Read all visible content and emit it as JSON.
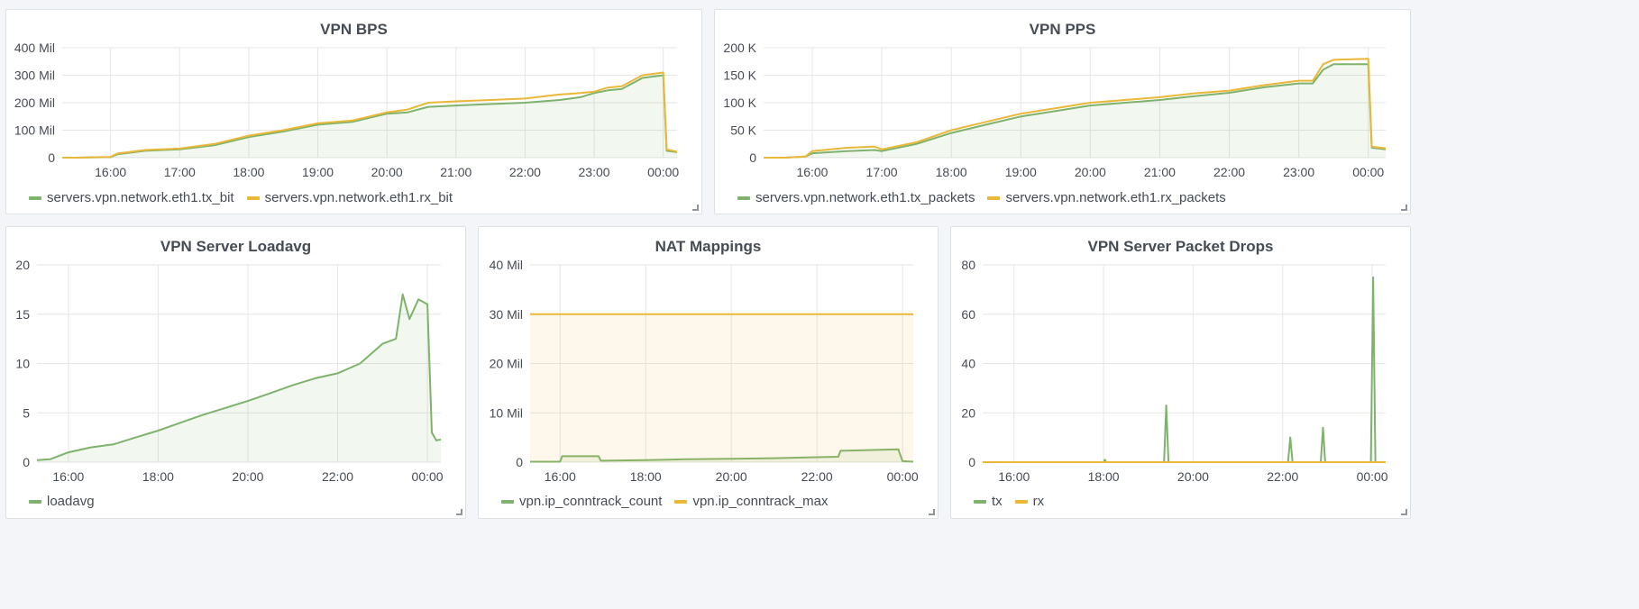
{
  "colors": {
    "green": "#7eb26d",
    "yellow": "#eab839",
    "grid": "#e6e6e6",
    "tick": "#464c54"
  },
  "icons": {
    "resize": "resize-corner-icon"
  },
  "panels": [
    {
      "title": "VPN BPS",
      "legend": [
        "servers.vpn.network.eth1.tx_bit",
        "servers.vpn.network.eth1.rx_bit"
      ],
      "chart_data": {
        "type": "area",
        "title": "VPN BPS",
        "xlim": [
          15.3,
          24.2
        ],
        "ylim": [
          0,
          400
        ],
        "x_ticks": [
          16,
          17,
          18,
          19,
          20,
          21,
          22,
          23,
          24
        ],
        "x_tick_labels": [
          "16:00",
          "17:00",
          "18:00",
          "19:00",
          "20:00",
          "21:00",
          "22:00",
          "23:00",
          "00:00"
        ],
        "y_ticks": [
          0,
          100,
          200,
          300,
          400
        ],
        "y_tick_labels": [
          "0",
          "100 Mil",
          "200 Mil",
          "300 Mil",
          "400 Mil"
        ],
        "grid": true,
        "legend_position": "bottom-left",
        "series": [
          {
            "name": "servers.vpn.network.eth1.tx_bit",
            "color": "#7eb26d",
            "fill": true,
            "x": [
              15.3,
              15.5,
              16.0,
              16.1,
              16.5,
              17.0,
              17.5,
              18.0,
              18.5,
              19.0,
              19.5,
              20.0,
              20.3,
              20.6,
              21.0,
              21.5,
              22.0,
              22.5,
              22.8,
              23.0,
              23.2,
              23.4,
              23.7,
              24.0,
              24.05,
              24.2
            ],
            "y": [
              0,
              0,
              2,
              12,
              25,
              30,
              45,
              75,
              95,
              120,
              130,
              160,
              165,
              185,
              190,
              195,
              200,
              210,
              220,
              235,
              245,
              250,
              290,
              300,
              25,
              20
            ]
          },
          {
            "name": "servers.vpn.network.eth1.rx_bit",
            "color": "#eab839",
            "fill": false,
            "x": [
              15.3,
              15.5,
              16.0,
              16.1,
              16.5,
              17.0,
              17.5,
              18.0,
              18.5,
              19.0,
              19.5,
              20.0,
              20.3,
              20.6,
              21.0,
              21.5,
              22.0,
              22.5,
              22.8,
              23.0,
              23.2,
              23.4,
              23.7,
              24.0,
              24.05,
              24.2
            ],
            "y": [
              0,
              0,
              3,
              15,
              28,
              33,
              50,
              80,
              100,
              125,
              135,
              165,
              175,
              200,
              205,
              210,
              215,
              230,
              235,
              240,
              255,
              260,
              300,
              310,
              30,
              22
            ]
          }
        ]
      }
    },
    {
      "title": "VPN PPS",
      "legend": [
        "servers.vpn.network.eth1.tx_packets",
        "servers.vpn.network.eth1.rx_packets"
      ],
      "chart_data": {
        "type": "area",
        "title": "VPN PPS",
        "xlim": [
          15.3,
          24.25
        ],
        "ylim": [
          0,
          200
        ],
        "x_ticks": [
          16,
          17,
          18,
          19,
          20,
          21,
          22,
          23,
          24
        ],
        "x_tick_labels": [
          "16:00",
          "17:00",
          "18:00",
          "19:00",
          "20:00",
          "21:00",
          "22:00",
          "23:00",
          "00:00"
        ],
        "y_ticks": [
          0,
          50,
          100,
          150,
          200
        ],
        "y_tick_labels": [
          "0",
          "50 K",
          "100 K",
          "150 K",
          "200 K"
        ],
        "grid": true,
        "legend_position": "bottom-left",
        "series": [
          {
            "name": "servers.vpn.network.eth1.tx_packets",
            "color": "#7eb26d",
            "fill": true,
            "x": [
              15.3,
              15.6,
              15.9,
              16.0,
              16.5,
              16.9,
              17.0,
              17.5,
              18.0,
              18.5,
              19.0,
              19.5,
              20.0,
              20.5,
              21.0,
              21.5,
              22.0,
              22.5,
              23.0,
              23.2,
              23.35,
              23.5,
              24.0,
              24.05,
              24.25
            ],
            "y": [
              0,
              0,
              2,
              8,
              12,
              14,
              12,
              25,
              45,
              60,
              75,
              85,
              95,
              100,
              105,
              112,
              118,
              128,
              135,
              135,
              160,
              170,
              170,
              18,
              15
            ]
          },
          {
            "name": "servers.vpn.network.eth1.rx_packets",
            "color": "#eab839",
            "fill": false,
            "x": [
              15.3,
              15.6,
              15.9,
              16.0,
              16.5,
              16.9,
              17.0,
              17.5,
              18.0,
              18.5,
              19.0,
              19.5,
              20.0,
              20.5,
              21.0,
              21.5,
              22.0,
              22.5,
              23.0,
              23.2,
              23.35,
              23.5,
              24.0,
              24.05,
              24.25
            ],
            "y": [
              0,
              0,
              2,
              12,
              18,
              20,
              15,
              28,
              50,
              65,
              80,
              90,
              100,
              105,
              110,
              117,
              122,
              132,
              140,
              140,
              170,
              178,
              180,
              20,
              17
            ]
          }
        ]
      }
    },
    {
      "title": "VPN Server Loadavg",
      "legend": [
        "loadavg"
      ],
      "chart_data": {
        "type": "area",
        "title": "VPN Server Loadavg",
        "xlim": [
          15.3,
          24.3
        ],
        "ylim": [
          0,
          20
        ],
        "x_ticks": [
          16,
          18,
          20,
          22,
          24
        ],
        "x_tick_labels": [
          "16:00",
          "18:00",
          "20:00",
          "22:00",
          "00:00"
        ],
        "y_ticks": [
          0,
          5,
          10,
          15,
          20
        ],
        "y_tick_labels": [
          "0",
          "5",
          "10",
          "15",
          "20"
        ],
        "grid": true,
        "legend_position": "bottom-left",
        "series": [
          {
            "name": "loadavg",
            "color": "#7eb26d",
            "fill": true,
            "x": [
              15.3,
              15.6,
              16.0,
              16.5,
              17.0,
              17.5,
              18.0,
              18.5,
              19.0,
              19.5,
              20.0,
              20.5,
              21.0,
              21.5,
              22.0,
              22.5,
              23.0,
              23.3,
              23.45,
              23.6,
              23.8,
              24.0,
              24.1,
              24.2,
              24.3
            ],
            "y": [
              0.2,
              0.3,
              1.0,
              1.5,
              1.8,
              2.5,
              3.2,
              4.0,
              4.8,
              5.5,
              6.2,
              7.0,
              7.8,
              8.5,
              9.0,
              10.0,
              12.0,
              12.5,
              17.0,
              14.5,
              16.5,
              16.0,
              3.0,
              2.2,
              2.3
            ]
          }
        ]
      }
    },
    {
      "title": "NAT Mappings",
      "legend": [
        "vpn.ip_conntrack_count",
        "vpn.ip_conntrack_max"
      ],
      "chart_data": {
        "type": "area",
        "title": "NAT Mappings",
        "xlim": [
          15.3,
          24.25
        ],
        "ylim": [
          0,
          40
        ],
        "x_ticks": [
          16,
          18,
          20,
          22,
          24
        ],
        "x_tick_labels": [
          "16:00",
          "18:00",
          "20:00",
          "22:00",
          "00:00"
        ],
        "y_ticks": [
          0,
          10,
          20,
          30,
          40
        ],
        "y_tick_labels": [
          "0",
          "10 Mil",
          "20 Mil",
          "30 Mil",
          "40 Mil"
        ],
        "grid": true,
        "legend_position": "bottom-left",
        "series": [
          {
            "name": "vpn.ip_conntrack_count",
            "color": "#7eb26d",
            "fill": true,
            "x": [
              15.3,
              16.0,
              16.05,
              16.9,
              16.95,
              18.0,
              19.0,
              20.0,
              21.0,
              22.0,
              22.5,
              22.55,
              23.0,
              23.5,
              23.9,
              24.0,
              24.25
            ],
            "y": [
              0.1,
              0.1,
              1.2,
              1.2,
              0.3,
              0.4,
              0.6,
              0.7,
              0.8,
              1.0,
              1.1,
              2.3,
              2.4,
              2.5,
              2.6,
              0.2,
              0.1
            ]
          },
          {
            "name": "vpn.ip_conntrack_max",
            "color": "#eab839",
            "fill": true,
            "x": [
              15.3,
              24.25
            ],
            "y": [
              30,
              30
            ]
          }
        ]
      }
    },
    {
      "title": "VPN Server Packet Drops",
      "legend": [
        "tx",
        "rx"
      ],
      "chart_data": {
        "type": "line",
        "title": "VPN Server Packet Drops",
        "xlim": [
          15.3,
          24.3
        ],
        "ylim": [
          0,
          80
        ],
        "x_ticks": [
          16,
          18,
          20,
          22,
          24
        ],
        "x_tick_labels": [
          "16:00",
          "18:00",
          "20:00",
          "22:00",
          "00:00"
        ],
        "y_ticks": [
          0,
          20,
          40,
          60,
          80
        ],
        "y_tick_labels": [
          "0",
          "20",
          "40",
          "60",
          "80"
        ],
        "grid": true,
        "legend_position": "bottom-left",
        "series": [
          {
            "name": "tx",
            "color": "#7eb26d",
            "fill": false,
            "x": [
              15.3,
              18.0,
              18.03,
              18.06,
              19.35,
              19.4,
              19.45,
              22.12,
              22.17,
              22.22,
              22.85,
              22.9,
              22.95,
              23.97,
              24.02,
              24.07,
              24.3
            ],
            "y": [
              0,
              0,
              1,
              0,
              0,
              23,
              0,
              0,
              10,
              0,
              0,
              14,
              0,
              0,
              75,
              0,
              0
            ]
          },
          {
            "name": "rx",
            "color": "#eab839",
            "fill": false,
            "x": [
              15.3,
              24.3
            ],
            "y": [
              0,
              0
            ]
          }
        ]
      }
    }
  ]
}
